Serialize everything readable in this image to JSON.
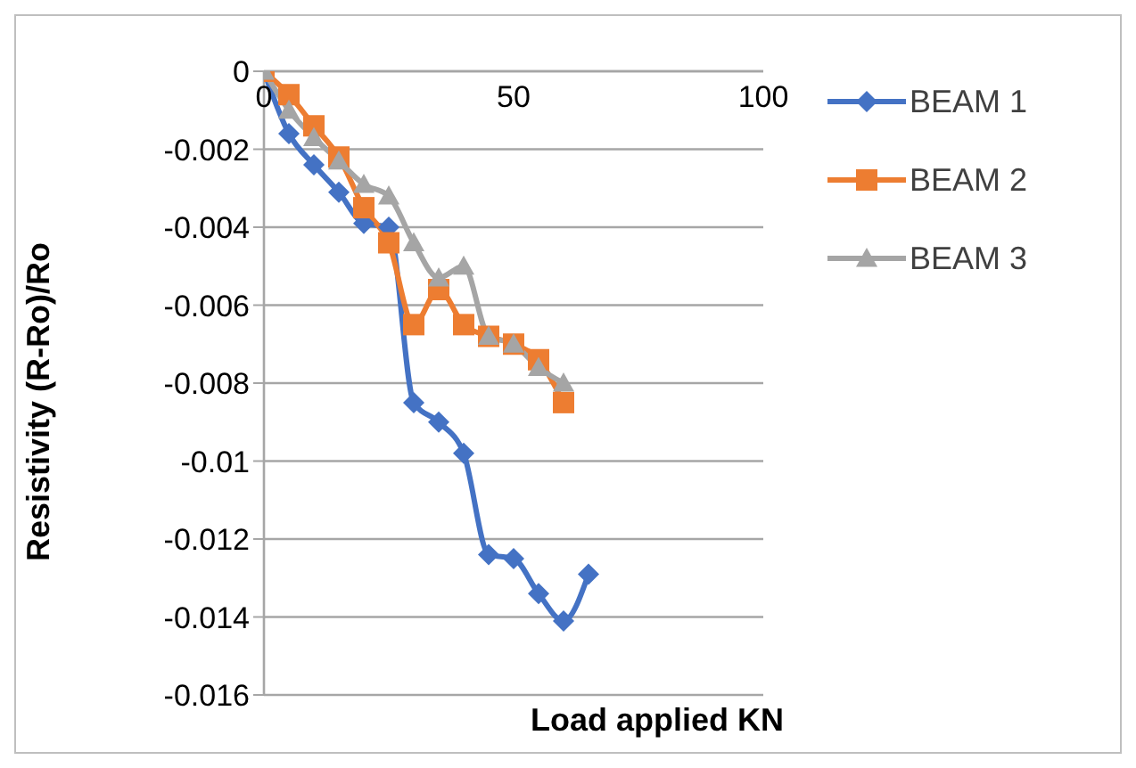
{
  "chart_data": {
    "type": "line",
    "xlabel": "Load applied KN",
    "ylabel": "Resistivity (R-Ro)/Ro",
    "xlim": [
      0,
      100
    ],
    "xticks": [
      0,
      50,
      100
    ],
    "ylim": [
      -0.016,
      0
    ],
    "yticks": [
      0,
      -0.002,
      -0.004,
      -0.006,
      -0.008,
      -0.01,
      -0.012,
      -0.014,
      -0.016
    ],
    "grid": "y",
    "legend": "top right",
    "series": [
      {
        "name": "BEAM 1",
        "color": "#4472c4",
        "marker": "diamond",
        "x": [
          0,
          5,
          10,
          15,
          20,
          25,
          30,
          35,
          40,
          45,
          50,
          55,
          60,
          65
        ],
        "values": [
          0,
          -0.0016,
          -0.0024,
          -0.0031,
          -0.0039,
          -0.004,
          -0.0085,
          -0.009,
          -0.0098,
          -0.0124,
          -0.0125,
          -0.0134,
          -0.0141,
          -0.0129
        ]
      },
      {
        "name": "BEAM 2",
        "color": "#ed7d31",
        "marker": "square",
        "x": [
          0,
          5,
          10,
          15,
          20,
          25,
          30,
          35,
          40,
          45,
          50,
          55,
          60
        ],
        "values": [
          0,
          -0.0006,
          -0.0014,
          -0.0022,
          -0.0035,
          -0.0044,
          -0.0065,
          -0.0056,
          -0.0065,
          -0.0068,
          -0.007,
          -0.0074,
          -0.0085
        ]
      },
      {
        "name": "BEAM 3",
        "color": "#a5a5a5",
        "marker": "triangle",
        "x": [
          0,
          5,
          10,
          15,
          20,
          25,
          30,
          35,
          40,
          45,
          50,
          55,
          60
        ],
        "values": [
          0,
          -0.001,
          -0.0017,
          -0.0023,
          -0.0029,
          -0.0032,
          -0.0044,
          -0.0053,
          -0.005,
          -0.0068,
          -0.007,
          -0.0076,
          -0.008
        ]
      }
    ]
  }
}
